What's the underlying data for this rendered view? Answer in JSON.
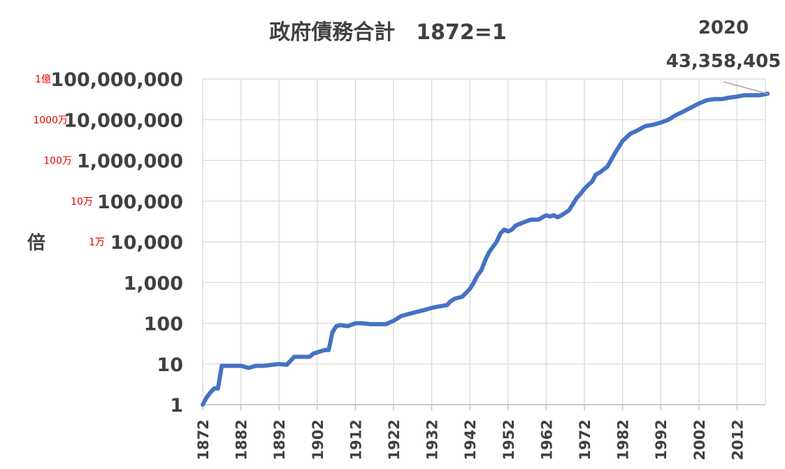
{
  "chart_data": {
    "type": "line",
    "title": "政府債務合計　1872=1",
    "ylabel": "倍",
    "xlabel": "",
    "yscale": "log",
    "xlim": [
      1872,
      2020
    ],
    "ylim": [
      1,
      100000000
    ],
    "grid": true,
    "line_color": "#4472c4",
    "y_ticks": [
      {
        "value": 1,
        "label": "1",
        "jp": ""
      },
      {
        "value": 10,
        "label": "10",
        "jp": ""
      },
      {
        "value": 100,
        "label": "100",
        "jp": ""
      },
      {
        "value": 1000,
        "label": "1,000",
        "jp": ""
      },
      {
        "value": 10000,
        "label": "10,000",
        "jp": "1万"
      },
      {
        "value": 100000,
        "label": "100,000",
        "jp": "10万"
      },
      {
        "value": 1000000,
        "label": "1,000,000",
        "jp": "100万"
      },
      {
        "value": 10000000,
        "label": "10,000,000",
        "jp": "1000万"
      },
      {
        "value": 100000000,
        "label": "100,000,000",
        "jp": "1億"
      }
    ],
    "x_ticks": [
      "1872",
      "1882",
      "1892",
      "1902",
      "1912",
      "1922",
      "1932",
      "1942",
      "1952",
      "1962",
      "1972",
      "1982",
      "1992",
      "2002",
      "2012"
    ],
    "annotation": {
      "year_label": "2020",
      "value_label": "43,358,405",
      "x": 2020,
      "y": 43358405
    },
    "series": [
      {
        "x": [
          1872,
          1873,
          1874,
          1875,
          1876,
          1877,
          1878,
          1880,
          1882,
          1884,
          1886,
          1888,
          1890,
          1892,
          1894,
          1896,
          1898,
          1900,
          1901,
          1904,
          1905,
          1906,
          1907,
          1908,
          1910,
          1912,
          1914,
          1916,
          1918,
          1920,
          1922,
          1924,
          1926,
          1928,
          1930,
          1932,
          1934,
          1936,
          1937,
          1938,
          1940,
          1942,
          1943,
          1944,
          1945,
          1946,
          1947,
          1948,
          1949,
          1950,
          1951,
          1952,
          1953,
          1954,
          1956,
          1958,
          1960,
          1961,
          1962,
          1963,
          1964,
          1965,
          1966,
          1968,
          1970,
          1971,
          1972,
          1973,
          1974,
          1975,
          1976,
          1978,
          1980,
          1982,
          1984,
          1986,
          1988,
          1990,
          1992,
          1994,
          1996,
          1998,
          2000,
          2002,
          2004,
          2006,
          2008,
          2010,
          2012,
          2014,
          2016,
          2018,
          2020
        ],
        "y": [
          1,
          1.5,
          2,
          2.5,
          2.5,
          9,
          9,
          9,
          9,
          8,
          9,
          9,
          9.5,
          10,
          9.5,
          15,
          15,
          15,
          18,
          22,
          22,
          60,
          85,
          90,
          85,
          100,
          100,
          95,
          95,
          95,
          115,
          150,
          170,
          190,
          210,
          240,
          260,
          280,
          350,
          400,
          450,
          700,
          1000,
          1500,
          2000,
          3500,
          5500,
          7500,
          10000,
          16000,
          20000,
          18000,
          20000,
          25000,
          30000,
          35000,
          35000,
          40000,
          45000,
          42000,
          45000,
          40000,
          45000,
          60000,
          120000,
          150000,
          200000,
          250000,
          300000,
          450000,
          500000,
          700000,
          1500000,
          3000000,
          4500000,
          5500000,
          7000000,
          7500000,
          8500000,
          10000000,
          13000000,
          16000000,
          20000000,
          25000000,
          30000000,
          32000000,
          32000000,
          35000000,
          37000000,
          40000000,
          40000000,
          40000000,
          43358405
        ]
      }
    ]
  }
}
